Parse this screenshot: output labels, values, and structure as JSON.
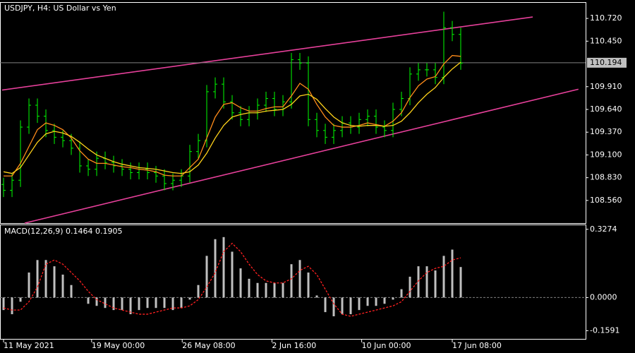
{
  "chart_data": [
    {
      "type": "ohlc",
      "title": "USDJPY, H4:  US Dollar vs Yen",
      "color": "#00ff00",
      "open": [
        108.75,
        108.68,
        108.8,
        109.43,
        109.69,
        109.56,
        109.39,
        109.31,
        109.27,
        109.18,
        108.97,
        108.93,
        109.06,
        109.01,
        108.97,
        108.93,
        108.89,
        108.93,
        108.89,
        108.85,
        108.76,
        108.8,
        108.85,
        109.14,
        109.27,
        109.85,
        109.94,
        109.73,
        109.6,
        109.52,
        109.6,
        109.69,
        109.77,
        109.64,
        109.73,
        110.23,
        110.19,
        109.52,
        109.39,
        109.31,
        109.39,
        109.48,
        109.43,
        109.52,
        109.56,
        109.43,
        109.39,
        109.64,
        109.77,
        110.06,
        110.11,
        110.11,
        110.02,
        110.61,
        110.53
      ],
      "high": [
        108.83,
        108.88,
        109.51,
        109.77,
        109.77,
        109.64,
        109.47,
        109.39,
        109.35,
        109.26,
        109.05,
        109.14,
        109.14,
        109.09,
        109.05,
        109.01,
        109.01,
        109.01,
        108.97,
        108.93,
        108.88,
        108.93,
        109.22,
        109.35,
        109.93,
        110.02,
        110.02,
        109.81,
        109.68,
        109.68,
        109.77,
        109.85,
        109.85,
        109.81,
        110.31,
        110.31,
        110.27,
        109.6,
        109.47,
        109.47,
        109.56,
        109.56,
        109.6,
        109.64,
        109.64,
        109.51,
        109.72,
        109.85,
        110.14,
        110.19,
        110.19,
        110.19,
        110.8,
        110.69,
        110.61
      ],
      "low": [
        108.6,
        108.6,
        108.72,
        109.35,
        109.48,
        109.31,
        109.23,
        109.19,
        109.1,
        108.89,
        108.85,
        108.85,
        108.93,
        108.89,
        108.85,
        108.81,
        108.81,
        108.81,
        108.77,
        108.68,
        108.68,
        108.72,
        108.77,
        109.06,
        109.19,
        109.77,
        109.65,
        109.52,
        109.44,
        109.44,
        109.52,
        109.61,
        109.56,
        109.56,
        109.65,
        110.11,
        109.44,
        109.31,
        109.23,
        109.23,
        109.31,
        109.35,
        109.35,
        109.44,
        109.35,
        109.31,
        109.31,
        109.56,
        109.69,
        109.98,
        110.03,
        109.94,
        109.94,
        110.45,
        110.11
      ],
      "close": [
        108.68,
        108.8,
        109.43,
        109.69,
        109.56,
        109.39,
        109.31,
        109.27,
        109.18,
        108.97,
        108.93,
        109.06,
        109.01,
        108.97,
        108.93,
        108.89,
        108.93,
        108.89,
        108.85,
        108.76,
        108.8,
        108.85,
        109.14,
        109.27,
        109.85,
        109.94,
        109.73,
        109.6,
        109.52,
        109.6,
        109.69,
        109.77,
        109.64,
        109.73,
        110.23,
        110.19,
        109.52,
        109.39,
        109.31,
        109.39,
        109.48,
        109.43,
        109.52,
        109.56,
        109.43,
        109.39,
        109.64,
        109.77,
        110.06,
        110.11,
        110.11,
        110.02,
        110.61,
        110.53,
        110.19
      ],
      "series": [
        {
          "color": "#ff8c1a",
          "values": [
            108.85,
            108.85,
            109.0,
            109.2,
            109.4,
            109.48,
            109.45,
            109.4,
            109.3,
            109.15,
            109.05,
            109.0,
            109.0,
            108.98,
            108.96,
            108.95,
            108.93,
            108.92,
            108.9,
            108.86,
            108.85,
            108.85,
            108.95,
            109.05,
            109.3,
            109.55,
            109.7,
            109.72,
            109.66,
            109.62,
            109.62,
            109.65,
            109.67,
            109.67,
            109.8,
            109.95,
            109.88,
            109.7,
            109.55,
            109.45,
            109.43,
            109.43,
            109.45,
            109.48,
            109.46,
            109.44,
            109.5,
            109.6,
            109.78,
            109.92,
            110.0,
            110.03,
            110.18,
            110.28,
            110.27
          ]
        },
        {
          "color": "#ffd21a",
          "values": [
            108.9,
            108.88,
            108.95,
            109.1,
            109.25,
            109.35,
            109.38,
            109.36,
            109.32,
            109.25,
            109.17,
            109.1,
            109.06,
            109.02,
            108.99,
            108.97,
            108.95,
            108.94,
            108.93,
            108.91,
            108.89,
            108.88,
            108.9,
            108.98,
            109.12,
            109.3,
            109.45,
            109.55,
            109.58,
            109.6,
            109.6,
            109.62,
            109.63,
            109.64,
            109.7,
            109.8,
            109.82,
            109.76,
            109.65,
            109.55,
            109.48,
            109.45,
            109.44,
            109.45,
            109.45,
            109.44,
            109.45,
            109.5,
            109.6,
            109.72,
            109.82,
            109.9,
            110.02,
            110.12,
            110.2
          ]
        }
      ],
      "trendlines": [
        {
          "color": "#e6409a",
          "x": [
            -0.17,
            62.5
          ],
          "y": [
            109.87,
            110.737
          ]
        },
        {
          "color": "#e6409a",
          "x": [
            2.5,
            67.9
          ],
          "y": [
            108.291,
            109.88
          ]
        }
      ],
      "current_price": 110.194,
      "xlim": [
        -0.42,
        68.75
      ],
      "xticks": [
        {
          "value": 0,
          "label": "11 May 2021"
        },
        {
          "value": 10.4,
          "label": "19 May 00:00"
        },
        {
          "value": 21.1,
          "label": "26 May 08:00"
        },
        {
          "value": 31.7,
          "label": "2 Jun 16:00"
        },
        {
          "value": 42.3,
          "label": "10 Jun 00:00"
        },
        {
          "value": 53,
          "label": "17 Jun 08:00"
        }
      ],
      "ylim": [
        108.291,
        110.905
      ],
      "yticks": [
        {
          "value": 108.56,
          "label": "108.560"
        },
        {
          "value": 108.83,
          "label": "108.830"
        },
        {
          "value": 109.1,
          "label": "109.100"
        },
        {
          "value": 109.37,
          "label": "109.370"
        },
        {
          "value": 109.64,
          "label": "109.640"
        },
        {
          "value": 109.91,
          "label": "109.910"
        },
        {
          "value": 110.45,
          "label": "110.450"
        },
        {
          "value": 110.72,
          "label": "110.720"
        }
      ]
    },
    {
      "type": "macd",
      "title": "MACD(12,26,9) 0.1464 0.1905",
      "color": "#c0c0c0",
      "values": [
        -0.06,
        -0.08,
        -0.02,
        0.12,
        0.18,
        0.18,
        0.15,
        0.11,
        0.06,
        0.0,
        -0.03,
        -0.04,
        -0.05,
        -0.06,
        -0.06,
        -0.08,
        -0.06,
        -0.05,
        -0.05,
        -0.05,
        -0.06,
        -0.05,
        -0.01,
        0.06,
        0.2,
        0.28,
        0.29,
        0.22,
        0.14,
        0.09,
        0.07,
        0.07,
        0.07,
        0.07,
        0.16,
        0.18,
        0.12,
        0.01,
        -0.07,
        -0.09,
        -0.08,
        -0.08,
        -0.06,
        -0.04,
        -0.04,
        -0.03,
        -0.01,
        0.04,
        0.1,
        0.15,
        0.15,
        0.13,
        0.2,
        0.23,
        0.1464
      ],
      "signal": {
        "color": "#ff2020",
        "values": [
          -0.05,
          -0.06,
          -0.06,
          -0.02,
          0.05,
          0.16,
          0.18,
          0.16,
          0.12,
          0.08,
          0.03,
          -0.01,
          -0.03,
          -0.05,
          -0.06,
          -0.07,
          -0.08,
          -0.08,
          -0.07,
          -0.06,
          -0.05,
          -0.05,
          -0.04,
          -0.01,
          0.05,
          0.12,
          0.22,
          0.26,
          0.22,
          0.16,
          0.11,
          0.08,
          0.07,
          0.07,
          0.09,
          0.13,
          0.15,
          0.11,
          0.04,
          -0.03,
          -0.08,
          -0.09,
          -0.08,
          -0.07,
          -0.06,
          -0.05,
          -0.04,
          -0.02,
          0.03,
          0.08,
          0.12,
          0.14,
          0.15,
          0.18,
          0.1905
        ]
      },
      "ylim": [
        -0.1984,
        0.347
      ],
      "yticks": [
        {
          "value": -0.1591,
          "label": "-0.1591"
        },
        {
          "value": 0,
          "label": "0.0000"
        },
        {
          "value": 0.3274,
          "label": "0.3274"
        }
      ]
    }
  ]
}
